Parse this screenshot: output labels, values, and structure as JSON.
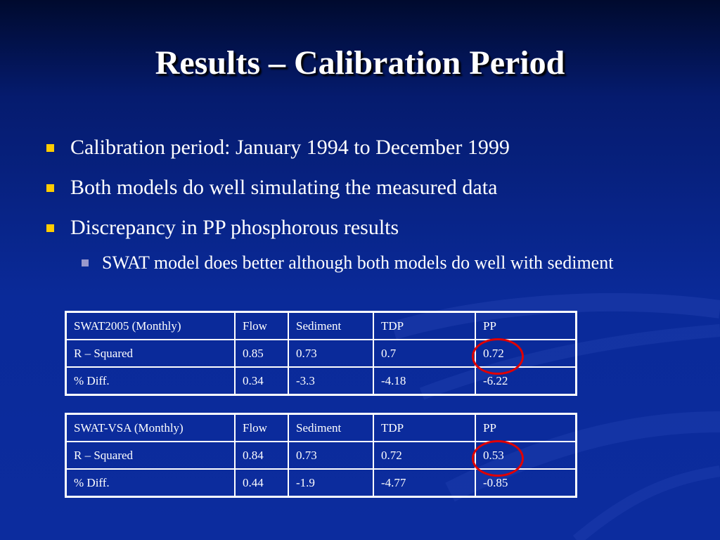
{
  "title": "Results – Calibration Period",
  "bullets": [
    "Calibration period: January 1994 to December 1999",
    "Both models do well simulating the measured data",
    "Discrepancy in PP phosphorous results"
  ],
  "sub_bullets": [
    "SWAT model does better although both models do well with sediment"
  ],
  "tables": [
    {
      "header": [
        "SWAT2005 (Monthly)",
        "Flow",
        "Sediment",
        "TDP",
        "PP"
      ],
      "rows": [
        [
          "R – Squared",
          "0.85",
          "0.73",
          "0.7",
          "0.72"
        ],
        [
          "% Diff.",
          "0.34",
          "-3.3",
          "-4.18",
          "-6.22"
        ]
      ]
    },
    {
      "header": [
        "SWAT-VSA (Monthly)",
        "Flow",
        "Sediment",
        "TDP",
        "PP"
      ],
      "rows": [
        [
          "R – Squared",
          "0.84",
          "0.73",
          "0.72",
          "0.53"
        ],
        [
          "% Diff.",
          "0.44",
          "-1.9",
          "-4.77",
          "-0.85"
        ]
      ]
    }
  ],
  "colors": {
    "background": "#0a2a99",
    "bullet_marker": "#ffcc00",
    "sub_bullet_marker": "#9999cc",
    "highlight_circle": "#e00000"
  }
}
